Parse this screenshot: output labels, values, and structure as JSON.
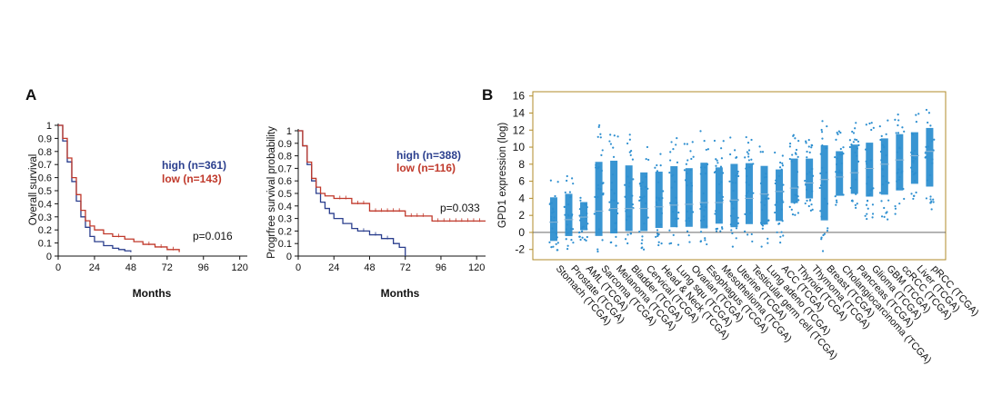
{
  "chart_data": [
    {
      "type": "line",
      "panel_label": "A",
      "xlabel": "Months",
      "ylabel": "Overall survival",
      "xticks": [
        "0",
        "24",
        "48",
        "72",
        "96",
        "120"
      ],
      "yticks": [
        "0",
        "0.1",
        "0.2",
        "0.3",
        "0.4",
        "0.5",
        "0.6",
        "0.7",
        "0.8",
        "0.9",
        "1"
      ],
      "xlim": [
        0,
        125
      ],
      "ylim": [
        0,
        1
      ],
      "series": [
        {
          "name": "high (n=361)",
          "color": "#2b3f8e",
          "x": [
            0,
            3,
            6,
            9,
            12,
            15,
            18,
            21,
            24,
            30,
            36,
            40,
            44,
            48
          ],
          "y": [
            1.0,
            0.88,
            0.72,
            0.57,
            0.42,
            0.3,
            0.22,
            0.15,
            0.11,
            0.08,
            0.06,
            0.05,
            0.04,
            0.03
          ]
        },
        {
          "name": "low (n=143)",
          "color": "#c0392b",
          "x": [
            0,
            3,
            6,
            9,
            12,
            15,
            18,
            21,
            24,
            30,
            36,
            44,
            50,
            56,
            64,
            72,
            80
          ],
          "y": [
            1.0,
            0.9,
            0.75,
            0.6,
            0.47,
            0.35,
            0.27,
            0.23,
            0.2,
            0.17,
            0.15,
            0.13,
            0.11,
            0.09,
            0.07,
            0.05,
            0.03
          ]
        }
      ],
      "annotation": "p=0.016"
    },
    {
      "type": "line",
      "xlabel": "Months",
      "ylabel": "Progrfree survival probability",
      "xticks": [
        "0",
        "24",
        "48",
        "72",
        "96",
        "120"
      ],
      "yticks": [
        "0",
        "0.1",
        "0.2",
        "0.3",
        "0.4",
        "0.5",
        "0.6",
        "0.7",
        "0.8",
        "0.9",
        "1"
      ],
      "xlim": [
        0,
        126
      ],
      "ylim": [
        0,
        1
      ],
      "series": [
        {
          "name": "high (n=388)",
          "color": "#2b3f8e",
          "x": [
            0,
            3,
            6,
            9,
            12,
            15,
            18,
            21,
            24,
            30,
            36,
            40,
            48,
            56,
            64,
            68,
            72
          ],
          "y": [
            1.0,
            0.88,
            0.73,
            0.6,
            0.5,
            0.43,
            0.38,
            0.34,
            0.3,
            0.26,
            0.22,
            0.2,
            0.17,
            0.14,
            0.1,
            0.07,
            0.0
          ]
        },
        {
          "name": "low (n=116)",
          "color": "#c0392b",
          "x": [
            0,
            3,
            6,
            9,
            12,
            15,
            18,
            24,
            36,
            48,
            72,
            90,
            126
          ],
          "y": [
            1.0,
            0.88,
            0.75,
            0.62,
            0.55,
            0.5,
            0.48,
            0.46,
            0.42,
            0.36,
            0.32,
            0.28,
            0.28
          ]
        }
      ],
      "annotation": "p=0.033"
    },
    {
      "type": "scatter",
      "panel_label": "B",
      "ylabel": "GPD1 expression (log)",
      "yticks": [
        "-2",
        "0",
        "2",
        "4",
        "6",
        "8",
        "10",
        "12",
        "14",
        "16"
      ],
      "ylim": [
        -3.2,
        16.5
      ],
      "point_color": "#2e8fd0",
      "highlight_color": "#d62728",
      "categories": [
        {
          "label": "Stomach (TCGA)",
          "median": 1.2,
          "low": -2.8,
          "high": 6.5,
          "highlight": false
        },
        {
          "label": "Prostate (TCGA)",
          "median": 1.5,
          "low": -2.0,
          "high": 7.0,
          "highlight": false
        },
        {
          "label": "AML (TCGA)",
          "median": 1.8,
          "low": -1.0,
          "high": 5.0,
          "highlight": false
        },
        {
          "label": "Sarcoma (TCGA)",
          "median": 2.5,
          "low": -2.8,
          "high": 13.0,
          "highlight": false
        },
        {
          "label": "Melanoma (TCGA)",
          "median": 2.8,
          "low": -2.5,
          "high": 13.0,
          "highlight": false
        },
        {
          "label": "Bladder (TCGA)",
          "median": 2.8,
          "low": -2.0,
          "high": 12.0,
          "highlight": false
        },
        {
          "label": "Cervical (TCGA)",
          "median": 2.8,
          "low": -2.0,
          "high": 10.5,
          "highlight": false
        },
        {
          "label": "Head & Neck (TCGA)",
          "median": 3.0,
          "low": -1.5,
          "high": 10.5,
          "highlight": false
        },
        {
          "label": "Lung squ (TCGA)",
          "median": 3.2,
          "low": -1.5,
          "high": 11.5,
          "highlight": false
        },
        {
          "label": "Ovarian (TCGA)",
          "median": 3.3,
          "low": -1.5,
          "high": 11.0,
          "highlight": false
        },
        {
          "label": "Esophagus (TCGA)",
          "median": 3.5,
          "low": -2.0,
          "high": 12.0,
          "highlight": false
        },
        {
          "label": "Mesothelioma (TCGA)",
          "median": 3.5,
          "low": -1.0,
          "high": 11.0,
          "highlight": false
        },
        {
          "label": "Uterine (TCGA)",
          "median": 3.8,
          "low": -2.0,
          "high": 11.5,
          "highlight": false
        },
        {
          "label": "Testicular germ cell (TCGA)",
          "median": 4.0,
          "low": -1.5,
          "high": 11.5,
          "highlight": false
        },
        {
          "label": "Lung adeno (TCGA)",
          "median": 4.5,
          "low": -2.0,
          "high": 10.5,
          "highlight": false
        },
        {
          "label": "ACC (TCGA)",
          "median": 4.8,
          "low": -1.5,
          "high": 9.5,
          "highlight": false
        },
        {
          "label": "Thyroid (TCGA)",
          "median": 5.2,
          "low": 2.0,
          "high": 11.5,
          "highlight": false
        },
        {
          "label": "Thymoma (TCGA)",
          "median": 5.8,
          "low": 2.5,
          "high": 11.0,
          "highlight": false
        },
        {
          "label": "Breast (TCGA)",
          "median": 6.2,
          "low": -2.5,
          "high": 13.5,
          "highlight": false
        },
        {
          "label": "Cholangiocarcinoma (TCGA)",
          "median": 6.5,
          "low": 2.5,
          "high": 12.0,
          "highlight": false
        },
        {
          "label": "Pancreas (TCGA)",
          "median": 7.0,
          "low": 2.5,
          "high": 13.0,
          "highlight": false
        },
        {
          "label": "Glioma (TCGA)",
          "median": 7.5,
          "low": 1.5,
          "high": 13.0,
          "highlight": true
        },
        {
          "label": "GBM (TCGA)",
          "median": 8.0,
          "low": 1.5,
          "high": 13.5,
          "highlight": true
        },
        {
          "label": "ccRCC (TCGA)",
          "median": 8.5,
          "low": 2.0,
          "high": 14.0,
          "highlight": false
        },
        {
          "label": "Liver (TCGA)",
          "median": 9.0,
          "low": 3.0,
          "high": 14.0,
          "highlight": false
        },
        {
          "label": "pRCC (TCGA)",
          "median": 9.5,
          "low": 2.0,
          "high": 14.5,
          "highlight": false
        }
      ]
    }
  ]
}
